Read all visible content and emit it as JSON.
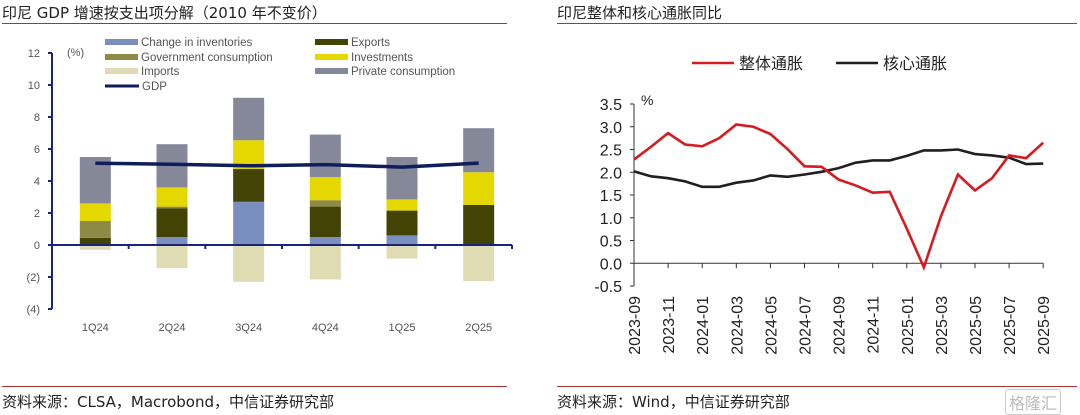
{
  "left_panel": {
    "title": "印尼 GDP 增速按支出项分解（2010 年不变价）",
    "source": "资料来源：CLSA，Macrobond，中信证券研究部"
  },
  "right_panel": {
    "title": "印尼整体和核心通胀同比",
    "source": "资料来源：Wind，中信证券研究部"
  },
  "watermark": "格隆汇",
  "chart_data": [
    {
      "type": "bar",
      "stacked": true,
      "title": "印尼 GDP 增速按支出项分解（2010 年不变价）",
      "ylabel": "(%)",
      "xlabel": "",
      "ylim": [
        -4,
        12
      ],
      "yticks": [
        12,
        10,
        8,
        6,
        4,
        2,
        0,
        -2,
        -4
      ],
      "ytick_labels": [
        "12",
        "10",
        "8",
        "6",
        "4",
        "2",
        "0",
        "(2)",
        "(4)"
      ],
      "categories": [
        "1Q24",
        "2Q24",
        "3Q24",
        "4Q24",
        "1Q25",
        "2Q25"
      ],
      "legend_position": "top",
      "series": [
        {
          "name": "Change in inventories",
          "color": "#7b8fbf",
          "values": [
            0.05,
            0.5,
            2.7,
            0.5,
            0.6,
            0.0
          ]
        },
        {
          "name": "Exports",
          "color": "#434306",
          "values": [
            0.4,
            1.8,
            2.05,
            1.9,
            1.55,
            2.5
          ]
        },
        {
          "name": "Government consumption",
          "color": "#8c8a45",
          "values": [
            1.05,
            0.1,
            0.0,
            0.4,
            0.0,
            0.0
          ]
        },
        {
          "name": "Investments",
          "color": "#e5d800",
          "values": [
            1.1,
            1.2,
            1.8,
            1.45,
            0.7,
            2.05
          ]
        },
        {
          "name": "Imports",
          "color": "#dfdcb4",
          "values": [
            -0.3,
            -1.45,
            -2.3,
            -2.15,
            -0.85,
            -2.25
          ]
        },
        {
          "name": "Private consumption",
          "color": "#858898",
          "values": [
            2.9,
            2.7,
            2.65,
            2.65,
            2.65,
            2.75
          ]
        }
      ],
      "line_series": {
        "name": "GDP",
        "color": "#0f1e5a",
        "values": [
          5.11,
          5.05,
          4.95,
          5.02,
          4.87,
          5.12
        ]
      }
    },
    {
      "type": "line",
      "title": "印尼整体和核心通胀同比",
      "ylabel": "%",
      "xlabel": "",
      "ylim": [
        -0.5,
        3.5
      ],
      "yticks": [
        "3.5",
        "3.0",
        "2.5",
        "2.0",
        "1.5",
        "1.0",
        "0.5",
        "0.0",
        "-0.5"
      ],
      "x": [
        "2023-09",
        "2023-10",
        "2023-11",
        "2023-12",
        "2024-01",
        "2024-02",
        "2024-03",
        "2024-04",
        "2024-05",
        "2024-06",
        "2024-07",
        "2024-08",
        "2024-09",
        "2024-10",
        "2024-11",
        "2024-12",
        "2025-01",
        "2025-02",
        "2025-03",
        "2025-04",
        "2025-05",
        "2025-06",
        "2025-07",
        "2025-08",
        "2025-09"
      ],
      "xtick_labels": [
        "2023-09",
        "2023-11",
        "2024-01",
        "2024-03",
        "2024-05",
        "2024-07",
        "2024-09",
        "2024-11",
        "2025-01",
        "2025-03",
        "2025-05",
        "2025-07",
        "2025-09"
      ],
      "legend_position": "top",
      "series": [
        {
          "name": "整体通胀",
          "color": "#d71920",
          "values": [
            2.28,
            2.56,
            2.86,
            2.61,
            2.57,
            2.75,
            3.05,
            3.0,
            2.84,
            2.51,
            2.13,
            2.12,
            1.84,
            1.71,
            1.55,
            1.57,
            0.76,
            -0.09,
            1.03,
            1.95,
            1.6,
            1.87,
            2.37,
            2.31,
            2.65
          ]
        },
        {
          "name": "核心通胀",
          "color": "#231f20",
          "values": [
            2.02,
            1.91,
            1.87,
            1.8,
            1.68,
            1.68,
            1.77,
            1.82,
            1.93,
            1.9,
            1.95,
            2.01,
            2.09,
            2.21,
            2.26,
            2.26,
            2.36,
            2.48,
            2.48,
            2.5,
            2.4,
            2.37,
            2.32,
            2.18,
            2.19
          ]
        }
      ]
    }
  ]
}
